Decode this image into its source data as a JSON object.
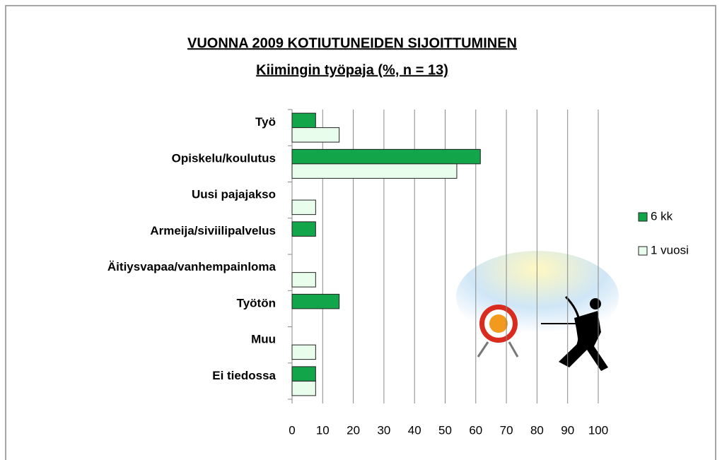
{
  "chart_data": {
    "type": "bar",
    "orientation": "horizontal",
    "title": "VUONNA 2009 KOTIUTUNEIDEN SIJOITTUMINEN",
    "subtitle": "Kiimingin työpaja  (%,  n = 13)",
    "categories": [
      "Työ",
      "Opiskelu/koulutus",
      "Uusi pajajakso",
      "Armeija/siviilipalvelus",
      "Äitiysvapaa/vanhempainloma",
      "Työtön",
      "Muu",
      "Ei tiedossa"
    ],
    "series": [
      {
        "name": "6 kk",
        "color": "#12a54a",
        "values": [
          7.7,
          61.5,
          0,
          7.7,
          0,
          15.4,
          0,
          7.7
        ]
      },
      {
        "name": "1 vuosi",
        "color": "#e8fdec",
        "values": [
          15.4,
          53.8,
          7.7,
          0,
          7.7,
          0,
          7.7,
          7.7
        ]
      }
    ],
    "xlim": [
      0,
      100
    ],
    "xticks": [
      0,
      10,
      20,
      30,
      40,
      50,
      60,
      70,
      80,
      90,
      100
    ],
    "grid": true,
    "legend": "right"
  }
}
